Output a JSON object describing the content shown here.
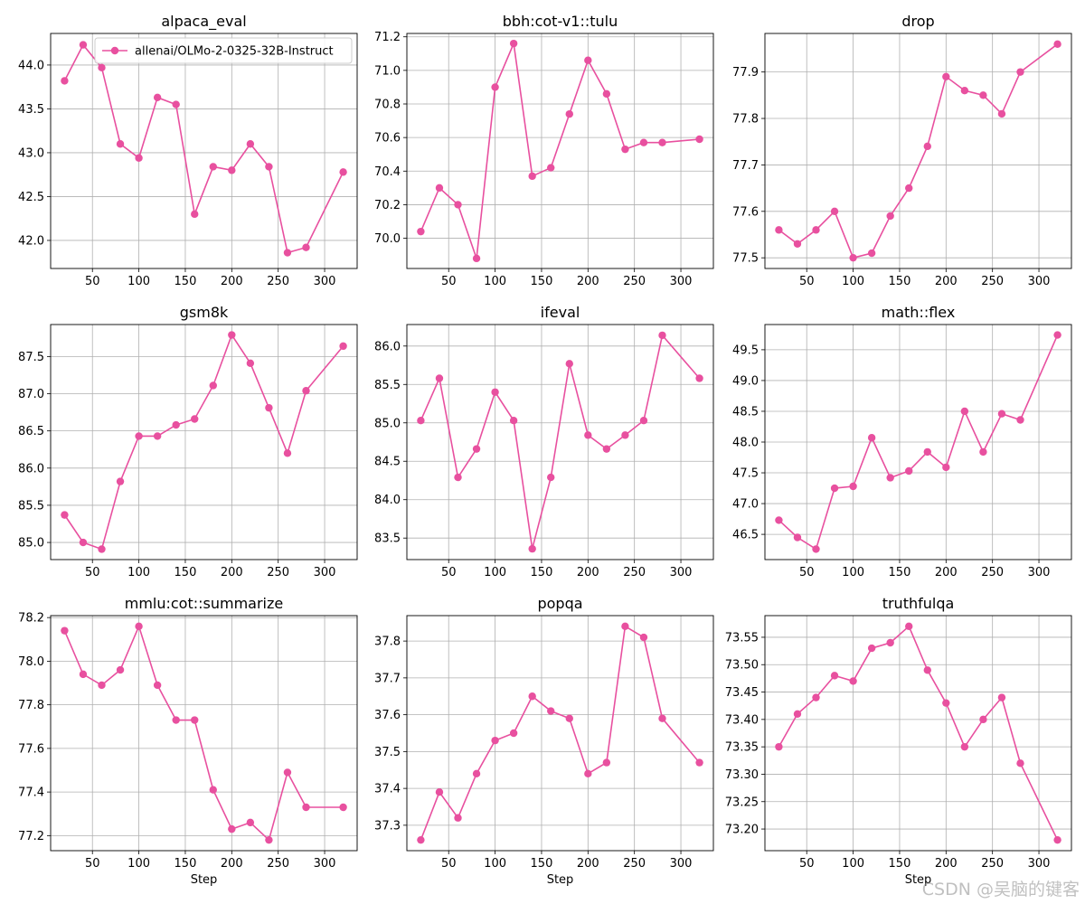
{
  "figure": {
    "line_color": "#e8509f",
    "grid_color": "#b0b0b0",
    "axis_color": "#000000"
  },
  "watermark": "CSDN @吴脑的键客",
  "chart_data": [
    {
      "type": "line",
      "title": "alpaca_eval",
      "xlabel": "",
      "x": [
        20,
        40,
        60,
        80,
        100,
        120,
        140,
        160,
        180,
        200,
        220,
        240,
        260,
        280,
        320
      ],
      "series": [
        {
          "name": "allenai/OLMo-2-0325-32B-Instruct",
          "values": [
            43.82,
            44.23,
            43.97,
            43.1,
            42.94,
            43.63,
            43.55,
            42.3,
            42.84,
            42.8,
            43.1,
            42.84,
            41.86,
            41.92,
            42.78
          ]
        }
      ],
      "yticks": [
        "42.0",
        "42.5",
        "43.0",
        "43.5",
        "44.0"
      ],
      "ylim": [
        41.68,
        44.36
      ],
      "legend": "top-right"
    },
    {
      "type": "line",
      "title": "bbh:cot-v1::tulu",
      "xlabel": "",
      "x": [
        20,
        40,
        60,
        80,
        100,
        120,
        140,
        160,
        180,
        200,
        220,
        240,
        260,
        280,
        320
      ],
      "series": [
        {
          "name": "allenai/OLMo-2-0325-32B-Instruct",
          "values": [
            70.04,
            70.3,
            70.2,
            69.88,
            70.9,
            71.16,
            70.37,
            70.42,
            70.74,
            71.06,
            70.86,
            70.53,
            70.57,
            70.57,
            70.59
          ]
        }
      ],
      "yticks": [
        "70.0",
        "70.2",
        "70.4",
        "70.6",
        "70.8",
        "71.0",
        "71.2"
      ],
      "ylim": [
        69.82,
        71.22
      ]
    },
    {
      "type": "line",
      "title": "drop",
      "xlabel": "",
      "x": [
        20,
        40,
        60,
        80,
        100,
        120,
        140,
        160,
        180,
        200,
        220,
        240,
        260,
        280,
        320
      ],
      "series": [
        {
          "name": "allenai/OLMo-2-0325-32B-Instruct",
          "values": [
            77.56,
            77.53,
            77.56,
            77.6,
            77.5,
            77.51,
            77.59,
            77.65,
            77.74,
            77.89,
            77.86,
            77.85,
            77.81,
            77.9,
            77.96
          ]
        }
      ],
      "yticks": [
        "77.5",
        "77.6",
        "77.7",
        "77.8",
        "77.9"
      ],
      "ylim": [
        77.477,
        77.983
      ]
    },
    {
      "type": "line",
      "title": "gsm8k",
      "xlabel": "",
      "x": [
        20,
        40,
        60,
        80,
        100,
        120,
        140,
        160,
        180,
        200,
        220,
        240,
        260,
        280,
        320
      ],
      "series": [
        {
          "name": "allenai/OLMo-2-0325-32B-Instruct",
          "values": [
            85.37,
            85.0,
            84.91,
            85.82,
            86.43,
            86.43,
            86.58,
            86.66,
            87.11,
            87.79,
            87.41,
            86.81,
            86.2,
            87.04,
            87.64
          ]
        }
      ],
      "yticks": [
        "85.0",
        "85.5",
        "86.0",
        "86.5",
        "87.0",
        "87.5"
      ],
      "ylim": [
        84.77,
        87.93
      ]
    },
    {
      "type": "line",
      "title": "ifeval",
      "xlabel": "",
      "x": [
        20,
        40,
        60,
        80,
        100,
        120,
        140,
        160,
        180,
        200,
        220,
        240,
        260,
        280,
        320
      ],
      "series": [
        {
          "name": "allenai/OLMo-2-0325-32B-Instruct",
          "values": [
            85.03,
            85.58,
            84.29,
            84.66,
            85.4,
            85.03,
            83.36,
            84.29,
            85.77,
            84.84,
            84.66,
            84.84,
            85.03,
            86.14,
            85.58
          ]
        }
      ],
      "yticks": [
        "83.5",
        "84.0",
        "84.5",
        "85.0",
        "85.5",
        "86.0"
      ],
      "ylim": [
        83.22,
        86.28
      ]
    },
    {
      "type": "line",
      "title": "math::flex",
      "xlabel": "",
      "x": [
        20,
        40,
        60,
        80,
        100,
        120,
        140,
        160,
        180,
        200,
        220,
        240,
        260,
        280,
        320
      ],
      "series": [
        {
          "name": "allenai/OLMo-2-0325-32B-Instruct",
          "values": [
            46.73,
            46.45,
            46.26,
            47.25,
            47.28,
            48.07,
            47.42,
            47.53,
            47.84,
            47.59,
            48.5,
            47.84,
            48.46,
            48.36,
            49.74
          ]
        }
      ],
      "yticks": [
        "46.5",
        "47.0",
        "47.5",
        "48.0",
        "48.5",
        "49.0",
        "49.5"
      ],
      "ylim": [
        46.09,
        49.91
      ]
    },
    {
      "type": "line",
      "title": "mmlu:cot::summarize",
      "xlabel": "Step",
      "x": [
        20,
        40,
        60,
        80,
        100,
        120,
        140,
        160,
        180,
        200,
        220,
        240,
        260,
        280,
        320
      ],
      "series": [
        {
          "name": "allenai/OLMo-2-0325-32B-Instruct",
          "values": [
            78.14,
            77.94,
            77.89,
            77.96,
            78.16,
            77.89,
            77.73,
            77.73,
            77.41,
            77.23,
            77.26,
            77.18,
            77.49,
            77.33,
            77.33
          ]
        }
      ],
      "yticks": [
        "77.2",
        "77.4",
        "77.6",
        "77.8",
        "78.0",
        "78.2"
      ],
      "ylim": [
        77.131,
        78.209
      ]
    },
    {
      "type": "line",
      "title": "popqa",
      "xlabel": "Step",
      "x": [
        20,
        40,
        60,
        80,
        100,
        120,
        140,
        160,
        180,
        200,
        220,
        240,
        260,
        280,
        320
      ],
      "series": [
        {
          "name": "allenai/OLMo-2-0325-32B-Instruct",
          "values": [
            37.26,
            37.39,
            37.32,
            37.44,
            37.53,
            37.55,
            37.65,
            37.61,
            37.59,
            37.44,
            37.47,
            37.84,
            37.81,
            37.59,
            37.47
          ]
        }
      ],
      "yticks": [
        "37.3",
        "37.4",
        "37.5",
        "37.6",
        "37.7",
        "37.8"
      ],
      "ylim": [
        37.231,
        37.869
      ]
    },
    {
      "type": "line",
      "title": "truthfulqa",
      "xlabel": "Step",
      "x": [
        20,
        40,
        60,
        80,
        100,
        120,
        140,
        160,
        180,
        200,
        220,
        240,
        260,
        280,
        320
      ],
      "series": [
        {
          "name": "allenai/OLMo-2-0325-32B-Instruct",
          "values": [
            73.35,
            73.41,
            73.44,
            73.48,
            73.47,
            73.53,
            73.54,
            73.57,
            73.49,
            73.43,
            73.35,
            73.4,
            73.44,
            73.32,
            73.18
          ]
        }
      ],
      "yticks": [
        "73.20",
        "73.25",
        "73.30",
        "73.35",
        "73.40",
        "73.45",
        "73.50",
        "73.55"
      ],
      "ylim": [
        73.1605,
        73.5895
      ]
    }
  ]
}
